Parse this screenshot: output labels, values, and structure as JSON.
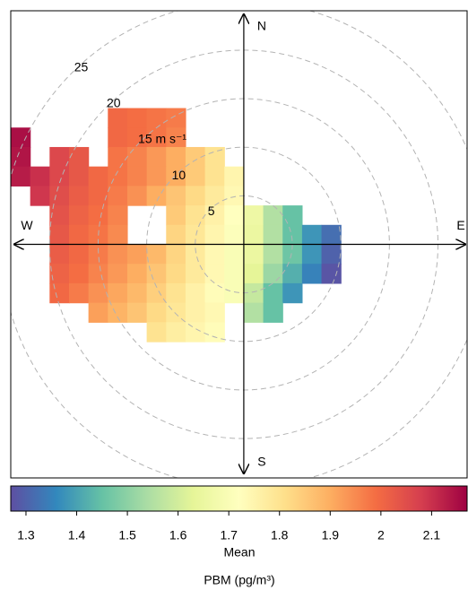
{
  "chart_data": {
    "type": "polar",
    "x": [
      -23,
      -21,
      -19,
      -17,
      -15,
      -13,
      -11,
      -9,
      -7,
      -5,
      -3,
      -1,
      1,
      3,
      5,
      7,
      9,
      11
    ],
    "y": [
      13,
      11,
      9,
      7,
      5,
      3,
      1,
      -1,
      -3,
      -5,
      -7,
      -9
    ],
    "values": [
      [
        null,
        null,
        null,
        null,
        null,
        2.0,
        1.99,
        1.98,
        1.97,
        null,
        null,
        null,
        null,
        null,
        null,
        null,
        null,
        null
      ],
      [
        2.15,
        null,
        null,
        null,
        null,
        2.0,
        1.99,
        1.98,
        1.96,
        null,
        null,
        null,
        null,
        null,
        null,
        null,
        null,
        null
      ],
      [
        2.14,
        null,
        2.06,
        2.03,
        null,
        1.98,
        1.96,
        1.93,
        1.9,
        1.85,
        1.8,
        null,
        null,
        null,
        null,
        null,
        null,
        null
      ],
      [
        2.13,
        2.1,
        2.06,
        2.03,
        2.0,
        1.98,
        1.96,
        1.93,
        1.9,
        1.85,
        1.8,
        1.75,
        null,
        null,
        null,
        null,
        null,
        null
      ],
      [
        null,
        2.09,
        2.05,
        2.02,
        2.0,
        1.97,
        1.94,
        1.9,
        1.86,
        1.82,
        1.78,
        1.74,
        null,
        null,
        null,
        null,
        null,
        null
      ],
      [
        null,
        null,
        2.04,
        2.01,
        1.99,
        1.96,
        null,
        null,
        1.85,
        1.8,
        1.76,
        1.72,
        1.66,
        1.55,
        1.45,
        null,
        null,
        null
      ],
      [
        null,
        null,
        2.03,
        2.0,
        1.98,
        1.95,
        null,
        null,
        1.83,
        1.79,
        1.75,
        1.71,
        1.65,
        1.55,
        1.45,
        1.38,
        1.32,
        null
      ],
      [
        null,
        null,
        2.02,
        2.0,
        1.97,
        1.94,
        1.92,
        1.88,
        1.83,
        1.78,
        1.74,
        1.7,
        1.65,
        1.55,
        1.46,
        1.38,
        1.3,
        null
      ],
      [
        null,
        null,
        2.01,
        1.99,
        1.96,
        1.93,
        1.9,
        1.86,
        1.82,
        1.78,
        1.74,
        1.7,
        1.63,
        1.52,
        1.42,
        1.35,
        1.28,
        null
      ],
      [
        null,
        null,
        2.0,
        1.97,
        1.94,
        1.91,
        1.88,
        1.84,
        1.8,
        1.76,
        1.73,
        1.7,
        1.58,
        1.45,
        1.38,
        null,
        null,
        null
      ],
      [
        null,
        null,
        null,
        null,
        1.92,
        1.89,
        1.86,
        1.82,
        1.79,
        1.76,
        1.74,
        null,
        1.55,
        1.45,
        null,
        null,
        null,
        null
      ],
      [
        null,
        null,
        null,
        null,
        null,
        null,
        null,
        1.8,
        1.77,
        1.75,
        1.73,
        null,
        null,
        null,
        null,
        null,
        null,
        null
      ]
    ],
    "xlim": [
      -24,
      23
    ],
    "ylim": [
      -24,
      24
    ],
    "rings": [
      5,
      10,
      {
        "value": 15,
        "label": "15 m s⁻¹"
      },
      20,
      25
    ],
    "directions": {
      "N": "N",
      "E": "E",
      "S": "S",
      "W": "W"
    },
    "colorbar": {
      "lim": [
        1.27,
        2.17
      ],
      "ticks": [
        1.3,
        1.4,
        1.5,
        1.6,
        1.7,
        1.8,
        1.9,
        2,
        2.1
      ],
      "colors": [
        "#5e4fa2",
        "#3288bd",
        "#66c2a5",
        "#abdda4",
        "#e6f598",
        "#ffffbf",
        "#fee08b",
        "#fdae61",
        "#f46d43",
        "#d53e4f",
        "#9e0142"
      ],
      "label": "Mean"
    },
    "title": "PBM (pg/m³)"
  }
}
